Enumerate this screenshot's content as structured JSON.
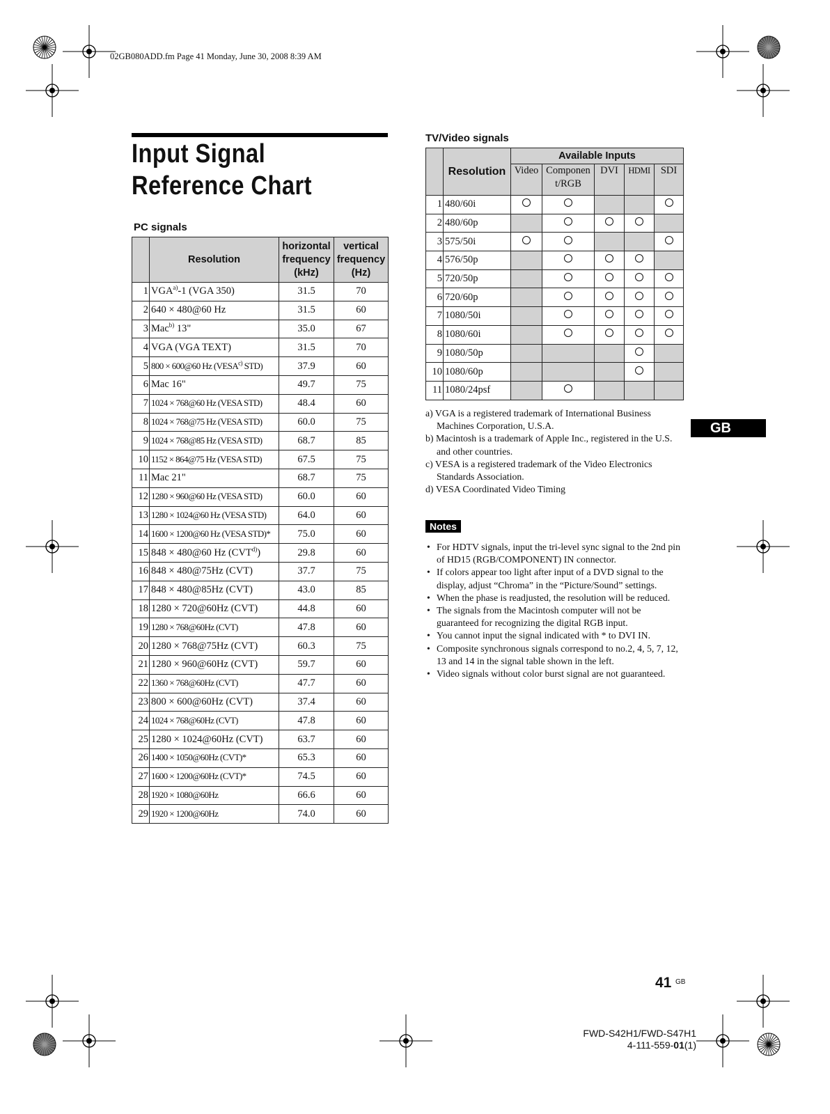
{
  "file_header": "02GB080ADD.fm  Page 41  Monday, June 30, 2008  8:39 AM",
  "title": "Input Signal Reference Chart",
  "pc": {
    "heading": "PC signals",
    "headers": {
      "resolution": "Resolution",
      "hfreq": [
        "horizontal",
        "frequency",
        "(kHz)"
      ],
      "vfreq": [
        "vertical",
        "frequency",
        "(Hz)"
      ]
    },
    "rows": [
      {
        "n": "1",
        "res": "VGA",
        "sup": "a)",
        "post": "-1 (VGA 350)",
        "h": "31.5",
        "v": "70"
      },
      {
        "n": "2",
        "res": "640 × 480@60 Hz",
        "h": "31.5",
        "v": "60"
      },
      {
        "n": "3",
        "res": "Mac",
        "sup": "b)",
        "post": " 13\"",
        "h": "35.0",
        "v": "67"
      },
      {
        "n": "4",
        "res": "VGA (VGA TEXT)",
        "h": "31.5",
        "v": "70"
      },
      {
        "n": "5",
        "res": "800 × 600@60 Hz (VESA",
        "sup": "c)",
        "post": " STD)",
        "h": "37.9",
        "v": "60",
        "small": true
      },
      {
        "n": "6",
        "res": "Mac 16\"",
        "h": "49.7",
        "v": "75"
      },
      {
        "n": "7",
        "res": "1024 × 768@60 Hz (VESA STD)",
        "h": "48.4",
        "v": "60",
        "small": true
      },
      {
        "n": "8",
        "res": "1024 × 768@75 Hz (VESA STD)",
        "h": "60.0",
        "v": "75",
        "small": true
      },
      {
        "n": "9",
        "res": "1024 × 768@85 Hz (VESA STD)",
        "h": "68.7",
        "v": "85",
        "small": true
      },
      {
        "n": "10",
        "res": "1152 × 864@75 Hz (VESA STD)",
        "h": "67.5",
        "v": "75",
        "small": true
      },
      {
        "n": "11",
        "res": "Mac 21\"",
        "h": "68.7",
        "v": "75"
      },
      {
        "n": "12",
        "res": "1280 × 960@60 Hz (VESA STD)",
        "h": "60.0",
        "v": "60",
        "small": true
      },
      {
        "n": "13",
        "res": "1280 × 1024@60 Hz (VESA STD)",
        "h": "64.0",
        "v": "60",
        "small": true
      },
      {
        "n": "14",
        "res": "1600 × 1200@60 Hz (VESA STD)*",
        "h": "75.0",
        "v": "60",
        "small": true
      },
      {
        "n": "15",
        "res": "848 × 480@60 Hz (CVT",
        "sup": "d)",
        "post": ")",
        "h": "29.8",
        "v": "60"
      },
      {
        "n": "16",
        "res": "848 × 480@75Hz (CVT)",
        "h": "37.7",
        "v": "75"
      },
      {
        "n": "17",
        "res": "848 × 480@85Hz (CVT)",
        "h": "43.0",
        "v": "85"
      },
      {
        "n": "18",
        "res": "1280 × 720@60Hz (CVT)",
        "h": "44.8",
        "v": "60"
      },
      {
        "n": "19",
        "res": "1280 × 768@60Hz (CVT)",
        "h": "47.8",
        "v": "60",
        "small": true
      },
      {
        "n": "20",
        "res": "1280 × 768@75Hz (CVT)",
        "h": "60.3",
        "v": "75"
      },
      {
        "n": "21",
        "res": "1280 × 960@60Hz (CVT)",
        "h": "59.7",
        "v": "60"
      },
      {
        "n": "22",
        "res": "1360 × 768@60Hz (CVT)",
        "h": "47.7",
        "v": "60",
        "small": true
      },
      {
        "n": "23",
        "res": "800 × 600@60Hz (CVT)",
        "h": "37.4",
        "v": "60"
      },
      {
        "n": "24",
        "res": "1024 × 768@60Hz (CVT)",
        "h": "47.8",
        "v": "60",
        "small": true
      },
      {
        "n": "25",
        "res": "1280 × 1024@60Hz (CVT)",
        "h": "63.7",
        "v": "60"
      },
      {
        "n": "26",
        "res": "1400 × 1050@60Hz (CVT)*",
        "h": "65.3",
        "v": "60",
        "small": true
      },
      {
        "n": "27",
        "res": "1600 × 1200@60Hz (CVT)*",
        "h": "74.5",
        "v": "60",
        "small": true
      },
      {
        "n": "28",
        "res": "1920 × 1080@60Hz",
        "h": "66.6",
        "v": "60",
        "small": true
      },
      {
        "n": "29",
        "res": "1920 × 1200@60Hz",
        "h": "74.0",
        "v": "60",
        "small": true
      }
    ]
  },
  "tv": {
    "heading": "TV/Video signals",
    "headers": {
      "resolution": "Resolution",
      "available": "Available Inputs",
      "inputs": [
        "Video",
        "Componen t/RGB",
        "DVI",
        "HDMI",
        "SDI"
      ]
    },
    "rows": [
      {
        "n": "1",
        "res": "480/60i",
        "avail": [
          true,
          true,
          false,
          false,
          true
        ]
      },
      {
        "n": "2",
        "res": "480/60p",
        "avail": [
          false,
          true,
          true,
          true,
          false
        ]
      },
      {
        "n": "3",
        "res": "575/50i",
        "avail": [
          true,
          true,
          false,
          false,
          true
        ]
      },
      {
        "n": "4",
        "res": "576/50p",
        "avail": [
          false,
          true,
          true,
          true,
          false
        ]
      },
      {
        "n": "5",
        "res": "720/50p",
        "avail": [
          false,
          true,
          true,
          true,
          true
        ]
      },
      {
        "n": "6",
        "res": "720/60p",
        "avail": [
          false,
          true,
          true,
          true,
          true
        ]
      },
      {
        "n": "7",
        "res": "1080/50i",
        "avail": [
          false,
          true,
          true,
          true,
          true
        ]
      },
      {
        "n": "8",
        "res": "1080/60i",
        "avail": [
          false,
          true,
          true,
          true,
          true
        ]
      },
      {
        "n": "9",
        "res": "1080/50p",
        "avail": [
          false,
          false,
          false,
          true,
          false
        ]
      },
      {
        "n": "10",
        "res": "1080/60p",
        "avail": [
          false,
          false,
          false,
          true,
          false
        ]
      },
      {
        "n": "11",
        "res": "1080/24psf",
        "avail": [
          false,
          true,
          false,
          false,
          false
        ]
      }
    ]
  },
  "footnotes": [
    "a) VGA is a registered trademark of International Business Machines Corporation, U.S.A.",
    "b) Macintosh is a trademark of Apple Inc., registered in the U.S. and other countries.",
    "c) VESA is a registered trademark of the Video Electronics Standards Association.",
    "d) VESA Coordinated Video Timing"
  ],
  "gb_tab": "GB",
  "notes": {
    "label": "Notes",
    "items": [
      "For HDTV signals, input the tri-level sync signal to the 2nd pin of HD15 (RGB/COMPONENT) IN connector.",
      "If colors appear too light after input of a DVD signal to the display, adjust “Chroma” in the “Picture/Sound” settings.",
      "When the phase is readjusted, the resolution will be reduced.",
      "The signals from the Macintosh computer will not be guaranteed for recognizing the digital RGB input.",
      "You cannot input the signal indicated with * to DVI IN.",
      "Composite synchronous signals correspond to no.2, 4, 5, 7, 12, 13 and 14 in the signal table shown in the left.",
      "Video signals without color burst signal are not guaranteed."
    ]
  },
  "page_number": "41",
  "page_number_suffix": "GB",
  "model": "FWD-S42H1/FWD-S47H1",
  "part_number": {
    "pre": "4-111-559-",
    "bold": "01",
    "post": "(1)"
  }
}
